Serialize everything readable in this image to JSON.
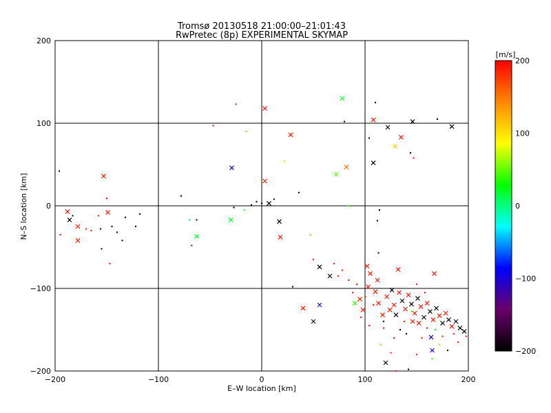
{
  "chart_data": {
    "type": "scatter",
    "title": "Tromsø 20130518 21:00:00–21:01:43",
    "subtitle": "RwPretec (8p) EXPERIMENTAL SKYMAP",
    "xlabel": "E–W location [km]",
    "ylabel": "N–S location [km]",
    "xlim": [
      -200,
      200
    ],
    "ylim": [
      -200,
      200
    ],
    "xticks": [
      "−200",
      "−100",
      "0",
      "100",
      "200"
    ],
    "yticks": [
      "−200",
      "−100",
      "0",
      "100",
      "200"
    ],
    "grid": true,
    "colorbar": {
      "label": "[m/s]",
      "range": [
        -200,
        200
      ],
      "ticks": [
        "−200",
        "−100",
        "0",
        "100",
        "200"
      ],
      "stops": [
        "#000000",
        "#6a006a",
        "#0000ff",
        "#00ffff",
        "#00ff00",
        "#ffff00",
        "#ff8800",
        "#ff0000"
      ]
    },
    "crosses": [
      {
        "x": -186,
        "y": -17,
        "v": -200
      },
      {
        "x": -188,
        "y": -7,
        "v": 190
      },
      {
        "x": -178,
        "y": -25,
        "v": 190
      },
      {
        "x": -178,
        "y": -42,
        "v": 190
      },
      {
        "x": -153,
        "y": 36,
        "v": 190
      },
      {
        "x": -149,
        "y": -8,
        "v": 190
      },
      {
        "x": -29,
        "y": 46,
        "v": -100
      },
      {
        "x": -30,
        "y": -17,
        "v": 20
      },
      {
        "x": -63,
        "y": -37,
        "v": 20
      },
      {
        "x": 3,
        "y": 118,
        "v": 190
      },
      {
        "x": 28,
        "y": 86,
        "v": 190
      },
      {
        "x": 78,
        "y": 130,
        "v": 20
      },
      {
        "x": 82,
        "y": 47,
        "v": 150
      },
      {
        "x": 72,
        "y": 38,
        "v": 50
      },
      {
        "x": 3,
        "y": 30,
        "v": 190
      },
      {
        "x": 108,
        "y": 104,
        "v": 190
      },
      {
        "x": 122,
        "y": 95,
        "v": -200
      },
      {
        "x": 135,
        "y": 83,
        "v": 190
      },
      {
        "x": 146,
        "y": 102,
        "v": -200
      },
      {
        "x": 184,
        "y": 96,
        "v": -200
      },
      {
        "x": 129,
        "y": 72,
        "v": 110
      },
      {
        "x": 108,
        "y": 52,
        "v": -200
      },
      {
        "x": 7,
        "y": 3,
        "v": -200
      },
      {
        "x": 17,
        "y": -19,
        "v": -200
      },
      {
        "x": 18,
        "y": -38,
        "v": 190
      },
      {
        "x": 56,
        "y": -74,
        "v": -200
      },
      {
        "x": 66,
        "y": -85,
        "v": -200
      },
      {
        "x": 102,
        "y": -73,
        "v": 190
      },
      {
        "x": 105,
        "y": -82,
        "v": 190
      },
      {
        "x": 112,
        "y": -90,
        "v": 190
      },
      {
        "x": 132,
        "y": -77,
        "v": 190
      },
      {
        "x": 167,
        "y": -82,
        "v": 190
      },
      {
        "x": 40,
        "y": -124,
        "v": 190
      },
      {
        "x": 56,
        "y": -120,
        "v": -100
      },
      {
        "x": 50,
        "y": -140,
        "v": -200
      },
      {
        "x": 90,
        "y": -118,
        "v": 40
      },
      {
        "x": 95,
        "y": -113,
        "v": 190
      },
      {
        "x": 98,
        "y": -126,
        "v": 190
      },
      {
        "x": 103,
        "y": -98,
        "v": 190
      },
      {
        "x": 110,
        "y": -104,
        "v": 190
      },
      {
        "x": 113,
        "y": -118,
        "v": 190
      },
      {
        "x": 117,
        "y": -132,
        "v": 190
      },
      {
        "x": 121,
        "y": -110,
        "v": 190
      },
      {
        "x": 126,
        "y": -102,
        "v": -200
      },
      {
        "x": 128,
        "y": -120,
        "v": 190
      },
      {
        "x": 130,
        "y": -132,
        "v": -200
      },
      {
        "x": 133,
        "y": -105,
        "v": 190
      },
      {
        "x": 136,
        "y": -115,
        "v": -200
      },
      {
        "x": 139,
        "y": -125,
        "v": 190
      },
      {
        "x": 142,
        "y": -108,
        "v": 190
      },
      {
        "x": 145,
        "y": -119,
        "v": -200
      },
      {
        "x": 148,
        "y": -130,
        "v": 190
      },
      {
        "x": 151,
        "y": -112,
        "v": -200
      },
      {
        "x": 154,
        "y": -122,
        "v": 190
      },
      {
        "x": 157,
        "y": -135,
        "v": -200
      },
      {
        "x": 160,
        "y": -118,
        "v": 190
      },
      {
        "x": 163,
        "y": -128,
        "v": -200
      },
      {
        "x": 166,
        "y": -138,
        "v": 190
      },
      {
        "x": 169,
        "y": -124,
        "v": -200
      },
      {
        "x": 172,
        "y": -133,
        "v": 190
      },
      {
        "x": 175,
        "y": -142,
        "v": -200
      },
      {
        "x": 178,
        "y": -130,
        "v": 190
      },
      {
        "x": 181,
        "y": -138,
        "v": -200
      },
      {
        "x": 184,
        "y": -146,
        "v": 190
      },
      {
        "x": 188,
        "y": -140,
        "v": -200
      },
      {
        "x": 192,
        "y": -148,
        "v": -200
      },
      {
        "x": 196,
        "y": -152,
        "v": -200
      },
      {
        "x": 164,
        "y": -159,
        "v": -100
      },
      {
        "x": 165,
        "y": -175,
        "v": -100
      },
      {
        "x": 120,
        "y": -190,
        "v": -200
      },
      {
        "x": 152,
        "y": -142,
        "v": 190
      },
      {
        "x": 146,
        "y": -140,
        "v": 190
      },
      {
        "x": 124,
        "y": -126,
        "v": 190
      }
    ],
    "dots": [
      {
        "x": -196,
        "y": 42,
        "v": -200
      },
      {
        "x": -195,
        "y": -35,
        "v": 190
      },
      {
        "x": -183,
        "y": -12,
        "v": -200
      },
      {
        "x": -170,
        "y": -28,
        "v": 190
      },
      {
        "x": -165,
        "y": -30,
        "v": 190
      },
      {
        "x": -158,
        "y": -12,
        "v": 190
      },
      {
        "x": -156,
        "y": -28,
        "v": -200
      },
      {
        "x": -155,
        "y": -52,
        "v": -200
      },
      {
        "x": -150,
        "y": 9,
        "v": 190
      },
      {
        "x": -145,
        "y": -25,
        "v": -200
      },
      {
        "x": -140,
        "y": -32,
        "v": -200
      },
      {
        "x": -135,
        "y": -42,
        "v": -200
      },
      {
        "x": -132,
        "y": -14,
        "v": -200
      },
      {
        "x": -122,
        "y": -25,
        "v": -200
      },
      {
        "x": -118,
        "y": -10,
        "v": -200
      },
      {
        "x": -147,
        "y": -70,
        "v": 190
      },
      {
        "x": -78,
        "y": 12,
        "v": -200
      },
      {
        "x": -70,
        "y": -17,
        "v": 20
      },
      {
        "x": -68,
        "y": -48,
        "v": 190
      },
      {
        "x": -63,
        "y": -17,
        "v": -200
      },
      {
        "x": -47,
        "y": 97,
        "v": 190
      },
      {
        "x": -25,
        "y": 123,
        "v": 190
      },
      {
        "x": -15,
        "y": 90,
        "v": 50
      },
      {
        "x": -27,
        "y": -2,
        "v": -200
      },
      {
        "x": -17,
        "y": -5,
        "v": 20
      },
      {
        "x": -10,
        "y": 1,
        "v": -200
      },
      {
        "x": -5,
        "y": 5,
        "v": -200
      },
      {
        "x": 0,
        "y": 3,
        "v": -200
      },
      {
        "x": 12,
        "y": 8,
        "v": -200
      },
      {
        "x": 22,
        "y": 54,
        "v": 100
      },
      {
        "x": 36,
        "y": 16,
        "v": -200
      },
      {
        "x": 47,
        "y": -35,
        "v": 50
      },
      {
        "x": 50,
        "y": -65,
        "v": 190
      },
      {
        "x": 30,
        "y": -98,
        "v": -200
      },
      {
        "x": 80,
        "y": 102,
        "v": -200
      },
      {
        "x": 84,
        "y": 0,
        "v": 40
      },
      {
        "x": 104,
        "y": 82,
        "v": -200
      },
      {
        "x": 110,
        "y": 125,
        "v": -200
      },
      {
        "x": 112,
        "y": -18,
        "v": -200
      },
      {
        "x": 114,
        "y": -5,
        "v": -200
      },
      {
        "x": 113,
        "y": -57,
        "v": -200
      },
      {
        "x": 144,
        "y": 64,
        "v": -200
      },
      {
        "x": 147,
        "y": 58,
        "v": 190
      },
      {
        "x": 170,
        "y": 105,
        "v": -200
      },
      {
        "x": 70,
        "y": -70,
        "v": 190
      },
      {
        "x": 74,
        "y": -85,
        "v": 190
      },
      {
        "x": 78,
        "y": -78,
        "v": 190
      },
      {
        "x": 84,
        "y": -90,
        "v": 190
      },
      {
        "x": 88,
        "y": -105,
        "v": 190
      },
      {
        "x": 92,
        "y": -95,
        "v": 190
      },
      {
        "x": 96,
        "y": -135,
        "v": 190
      },
      {
        "x": 100,
        "y": -110,
        "v": 190
      },
      {
        "x": 104,
        "y": -145,
        "v": 190
      },
      {
        "x": 108,
        "y": -120,
        "v": 190
      },
      {
        "x": 115,
        "y": -168,
        "v": 50
      },
      {
        "x": 118,
        "y": -148,
        "v": 190
      },
      {
        "x": 125,
        "y": -178,
        "v": 190
      },
      {
        "x": 130,
        "y": -200,
        "v": 190
      },
      {
        "x": 138,
        "y": -140,
        "v": 190
      },
      {
        "x": 142,
        "y": -198,
        "v": -200
      },
      {
        "x": 150,
        "y": -180,
        "v": 190
      },
      {
        "x": 155,
        "y": -160,
        "v": 190
      },
      {
        "x": 160,
        "y": -148,
        "v": 190
      },
      {
        "x": 168,
        "y": -150,
        "v": 20
      },
      {
        "x": 172,
        "y": -168,
        "v": 110
      },
      {
        "x": 175,
        "y": -158,
        "v": 190
      },
      {
        "x": 180,
        "y": -175,
        "v": -200
      },
      {
        "x": 186,
        "y": -155,
        "v": 190
      },
      {
        "x": 190,
        "y": -165,
        "v": 190
      },
      {
        "x": 165,
        "y": -185,
        "v": 40
      },
      {
        "x": 140,
        "y": -155,
        "v": -200
      },
      {
        "x": 128,
        "y": -160,
        "v": 190
      },
      {
        "x": 158,
        "y": -105,
        "v": 190
      },
      {
        "x": 150,
        "y": -95,
        "v": 190
      },
      {
        "x": 145,
        "y": -128,
        "v": 40
      },
      {
        "x": 118,
        "y": -140,
        "v": -200
      },
      {
        "x": 134,
        "y": -150,
        "v": -200
      },
      {
        "x": 198,
        "y": -158,
        "v": 190
      }
    ]
  }
}
